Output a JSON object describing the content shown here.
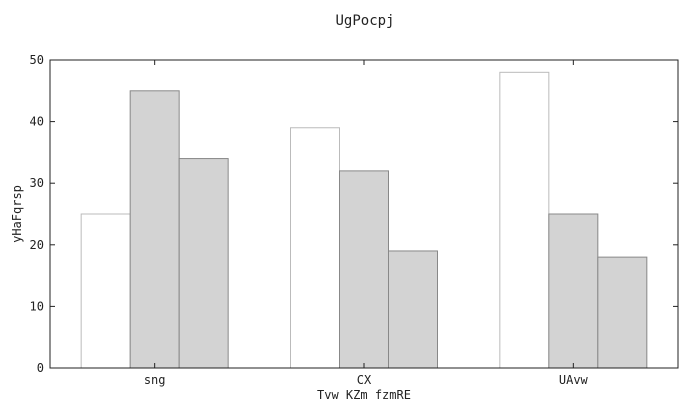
{
  "chart_data": {
    "type": "bar",
    "title": "UgPocpj",
    "xlabel": "Tvw KZm fzmRE",
    "ylabel": "yHaFqrsp",
    "categories": [
      "sng",
      "CX",
      "UAvw"
    ],
    "series": [
      {
        "values": [
          25,
          39,
          48
        ],
        "color": "#ffffff",
        "edge": "#bbbbbb"
      },
      {
        "values": [
          45,
          32,
          25
        ],
        "color": "#d3d3d3",
        "edge": "#888888"
      },
      {
        "values": [
          34,
          19,
          18
        ],
        "color": "#d3d3d3",
        "edge": "#888888"
      }
    ],
    "ylim": [
      0,
      50
    ],
    "yticks": [
      0,
      10,
      20,
      30,
      40,
      50
    ],
    "grid": false,
    "legend": "none"
  }
}
